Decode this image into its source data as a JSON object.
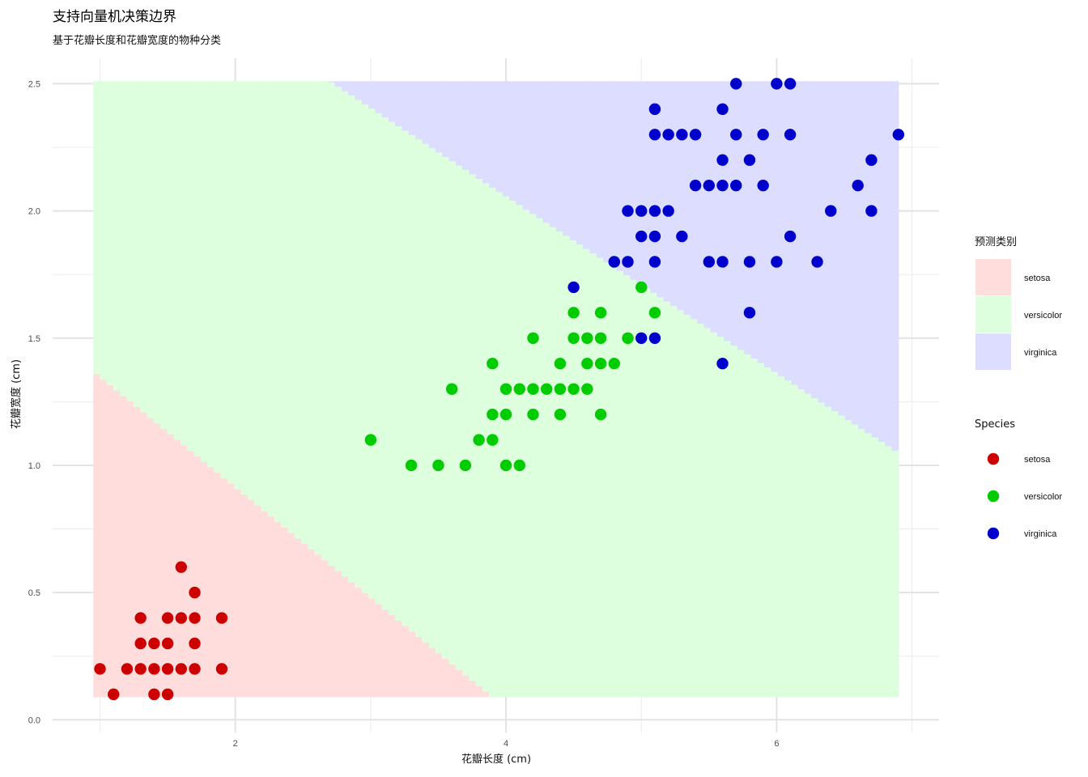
{
  "chart_data": {
    "type": "scatter",
    "title": "支持向量机决策边界",
    "subtitle": "基于花瓣长度和花瓣宽度的物种分类",
    "xlabel": "花瓣长度 (cm)",
    "ylabel": "花瓣宽度 (cm)",
    "xlim": [
      0.65,
      7.2
    ],
    "ylim": [
      -0.05,
      2.6
    ],
    "x_ticks": [
      2,
      4,
      6
    ],
    "x_tick_labels": [
      "2",
      "4",
      "6"
    ],
    "y_ticks": [
      0.0,
      0.5,
      1.0,
      1.5,
      2.0,
      2.5
    ],
    "y_tick_labels": [
      "0.0",
      "0.5",
      "1.0",
      "1.5",
      "2.0",
      "2.5"
    ],
    "grid": true,
    "decision_region": {
      "x_range": [
        0.95,
        6.9
      ],
      "y_range": [
        0.09,
        2.51
      ],
      "classes": [
        "setosa",
        "versicolor",
        "virginica"
      ],
      "fill_colors": [
        "#ffdddd",
        "#ddffdd",
        "#ddddff"
      ],
      "setosa_versicolor_boundary": [
        [
          0.95,
          1.37
        ],
        [
          3.9,
          0.09
        ]
      ],
      "versicolor_virginica_boundary": [
        [
          2.7,
          2.51
        ],
        [
          6.9,
          1.05
        ]
      ]
    },
    "fill_legend": {
      "title": "预测类别",
      "entries": [
        "setosa",
        "versicolor",
        "virginica"
      ],
      "colors": [
        "#ffdddd",
        "#ddffdd",
        "#ddddff"
      ]
    },
    "point_legend": {
      "title": "Species",
      "entries": [
        "setosa",
        "versicolor",
        "virginica"
      ],
      "colors": [
        "#cc0000",
        "#00cc00",
        "#0000cc"
      ]
    },
    "series": [
      {
        "name": "setosa",
        "color": "#cc0000",
        "points": [
          [
            1.0,
            0.2
          ],
          [
            1.1,
            0.1
          ],
          [
            1.2,
            0.2
          ],
          [
            1.3,
            0.2
          ],
          [
            1.3,
            0.3
          ],
          [
            1.3,
            0.4
          ],
          [
            1.4,
            0.1
          ],
          [
            1.4,
            0.2
          ],
          [
            1.4,
            0.3
          ],
          [
            1.5,
            0.1
          ],
          [
            1.5,
            0.2
          ],
          [
            1.5,
            0.3
          ],
          [
            1.5,
            0.4
          ],
          [
            1.6,
            0.2
          ],
          [
            1.6,
            0.4
          ],
          [
            1.6,
            0.6
          ],
          [
            1.7,
            0.2
          ],
          [
            1.7,
            0.3
          ],
          [
            1.7,
            0.4
          ],
          [
            1.7,
            0.5
          ],
          [
            1.9,
            0.2
          ],
          [
            1.9,
            0.4
          ]
        ]
      },
      {
        "name": "versicolor",
        "color": "#00cc00",
        "points": [
          [
            3.0,
            1.1
          ],
          [
            3.3,
            1.0
          ],
          [
            3.5,
            1.0
          ],
          [
            3.6,
            1.3
          ],
          [
            3.7,
            1.0
          ],
          [
            3.8,
            1.1
          ],
          [
            3.9,
            1.1
          ],
          [
            3.9,
            1.2
          ],
          [
            3.9,
            1.4
          ],
          [
            4.0,
            1.0
          ],
          [
            4.0,
            1.2
          ],
          [
            4.0,
            1.3
          ],
          [
            4.1,
            1.0
          ],
          [
            4.1,
            1.3
          ],
          [
            4.2,
            1.2
          ],
          [
            4.2,
            1.3
          ],
          [
            4.2,
            1.5
          ],
          [
            4.3,
            1.3
          ],
          [
            4.4,
            1.2
          ],
          [
            4.4,
            1.3
          ],
          [
            4.4,
            1.4
          ],
          [
            4.5,
            1.3
          ],
          [
            4.5,
            1.5
          ],
          [
            4.5,
            1.6
          ],
          [
            4.6,
            1.3
          ],
          [
            4.6,
            1.4
          ],
          [
            4.6,
            1.5
          ],
          [
            4.7,
            1.2
          ],
          [
            4.7,
            1.4
          ],
          [
            4.7,
            1.5
          ],
          [
            4.7,
            1.6
          ],
          [
            4.8,
            1.4
          ],
          [
            4.8,
            1.8
          ],
          [
            4.9,
            1.5
          ],
          [
            5.0,
            1.7
          ],
          [
            5.1,
            1.6
          ]
        ]
      },
      {
        "name": "virginica",
        "color": "#0000cc",
        "points": [
          [
            4.5,
            1.7
          ],
          [
            4.8,
            1.8
          ],
          [
            4.9,
            1.8
          ],
          [
            4.9,
            2.0
          ],
          [
            5.0,
            1.5
          ],
          [
            5.0,
            1.9
          ],
          [
            5.0,
            2.0
          ],
          [
            5.1,
            1.5
          ],
          [
            5.1,
            1.8
          ],
          [
            5.1,
            1.9
          ],
          [
            5.1,
            2.0
          ],
          [
            5.1,
            2.3
          ],
          [
            5.1,
            2.4
          ],
          [
            5.2,
            2.0
          ],
          [
            5.2,
            2.3
          ],
          [
            5.3,
            1.9
          ],
          [
            5.3,
            2.3
          ],
          [
            5.4,
            2.1
          ],
          [
            5.4,
            2.3
          ],
          [
            5.5,
            1.8
          ],
          [
            5.5,
            2.1
          ],
          [
            5.6,
            1.4
          ],
          [
            5.6,
            1.8
          ],
          [
            5.6,
            2.1
          ],
          [
            5.6,
            2.2
          ],
          [
            5.6,
            2.4
          ],
          [
            5.7,
            2.1
          ],
          [
            5.7,
            2.3
          ],
          [
            5.7,
            2.5
          ],
          [
            5.8,
            1.6
          ],
          [
            5.8,
            1.8
          ],
          [
            5.8,
            2.2
          ],
          [
            5.9,
            2.1
          ],
          [
            5.9,
            2.3
          ],
          [
            6.0,
            1.8
          ],
          [
            6.0,
            2.5
          ],
          [
            6.1,
            1.9
          ],
          [
            6.1,
            2.3
          ],
          [
            6.1,
            2.5
          ],
          [
            6.3,
            1.8
          ],
          [
            6.4,
            2.0
          ],
          [
            6.6,
            2.1
          ],
          [
            6.7,
            2.0
          ],
          [
            6.7,
            2.2
          ],
          [
            6.9,
            2.3
          ]
        ]
      }
    ]
  }
}
